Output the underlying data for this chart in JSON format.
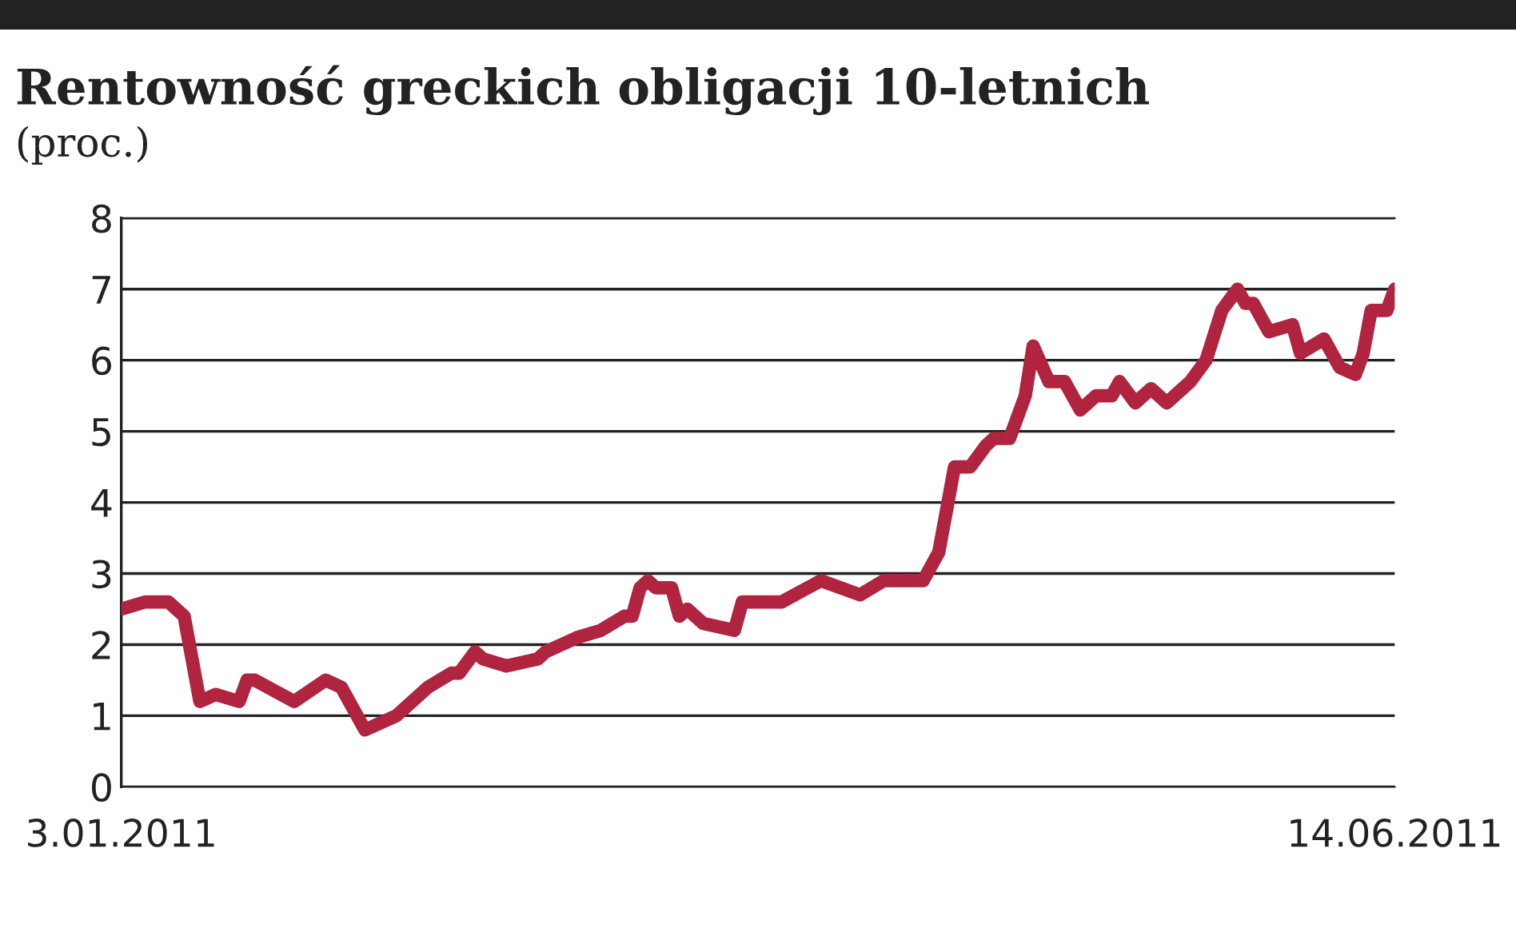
{
  "chart_data": {
    "type": "line",
    "title": "Rentowność greckich obligacji 10-letnich",
    "subtitle": "(proc.)",
    "x": [
      "2011-01-03",
      "2011-01-06",
      "2011-01-09",
      "2011-01-11",
      "2011-01-13",
      "2011-01-15",
      "2011-01-18",
      "2011-01-19",
      "2011-01-20",
      "2011-01-25",
      "2011-01-29",
      "2011-01-31",
      "2011-02-03",
      "2011-02-07",
      "2011-02-09",
      "2011-02-11",
      "2011-02-14",
      "2011-02-15",
      "2011-02-17",
      "2011-02-18",
      "2011-02-21",
      "2011-02-25",
      "2011-02-26",
      "2011-02-28",
      "2011-03-02",
      "2011-03-05",
      "2011-03-08",
      "2011-03-09",
      "2011-03-10",
      "2011-03-11",
      "2011-03-12",
      "2011-03-14",
      "2011-03-15",
      "2011-03-16",
      "2011-03-18",
      "2011-03-22",
      "2011-03-23",
      "2011-03-28",
      "2011-04-02",
      "2011-04-07",
      "2011-04-10",
      "2011-04-15",
      "2011-04-17",
      "2011-04-19",
      "2011-04-21",
      "2011-04-23",
      "2011-04-24",
      "2011-04-26",
      "2011-04-28",
      "2011-04-29",
      "2011-05-01",
      "2011-05-03",
      "2011-05-05",
      "2011-05-07",
      "2011-05-09",
      "2011-05-10",
      "2011-05-12",
      "2011-05-14",
      "2011-05-16",
      "2011-05-18",
      "2011-05-19",
      "2011-05-21",
      "2011-05-23",
      "2011-05-25",
      "2011-05-26",
      "2011-05-27",
      "2011-05-29",
      "2011-06-01",
      "2011-06-02",
      "2011-06-05",
      "2011-06-07",
      "2011-06-09",
      "2011-06-10",
      "2011-06-11",
      "2011-06-13",
      "2011-06-14"
    ],
    "series": [
      {
        "color": "#b0243f",
        "values": [
          2.5,
          2.6,
          2.6,
          2.4,
          1.2,
          1.3,
          1.2,
          1.5,
          1.5,
          1.2,
          1.5,
          1.4,
          0.8,
          1.0,
          1.2,
          1.4,
          1.6,
          1.6,
          1.9,
          1.8,
          1.7,
          1.8,
          1.9,
          2.0,
          2.1,
          2.2,
          2.4,
          2.4,
          2.8,
          2.9,
          2.8,
          2.8,
          2.4,
          2.5,
          2.3,
          2.2,
          2.6,
          2.6,
          2.9,
          2.7,
          2.9,
          2.9,
          3.3,
          4.5,
          4.5,
          4.8,
          4.9,
          4.9,
          5.5,
          6.2,
          5.7,
          5.7,
          5.3,
          5.5,
          5.5,
          5.7,
          5.4,
          5.6,
          5.4,
          5.6,
          5.7,
          6.0,
          6.7,
          7.0,
          6.8,
          6.8,
          6.4,
          6.5,
          6.1,
          6.3,
          5.9,
          5.8,
          6.1,
          6.7,
          6.7,
          7.0
        ]
      }
    ],
    "xlim": [
      "2011-01-03",
      "2011-06-14"
    ],
    "xticks": [
      {
        "value": "2011-01-03",
        "label": "3.01.2011"
      },
      {
        "value": "2011-06-14",
        "label": "14.06.2011"
      }
    ],
    "ylim": [
      0,
      8
    ],
    "yticks": [
      0,
      1,
      2,
      3,
      4,
      5,
      6,
      7,
      8
    ],
    "grid": "y",
    "marker": "none",
    "line_style": "solid"
  }
}
